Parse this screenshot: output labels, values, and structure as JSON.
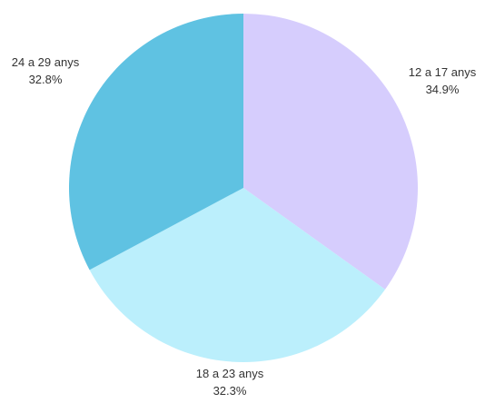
{
  "chart_data": {
    "type": "pie",
    "slices": [
      {
        "label": "12 a 17 anys",
        "value": 34.9,
        "value_label": "34.9%",
        "color": "#d6cdfd"
      },
      {
        "label": "18 a 23 anys",
        "value": 32.3,
        "value_label": "32.3%",
        "color": "#bbeffc"
      },
      {
        "label": "24 a 29 anys",
        "value": 32.8,
        "value_label": "32.8%",
        "color": "#5fc2e2"
      }
    ],
    "start_angle": "12 o'clock",
    "direction": "clockwise",
    "legend": "none"
  }
}
